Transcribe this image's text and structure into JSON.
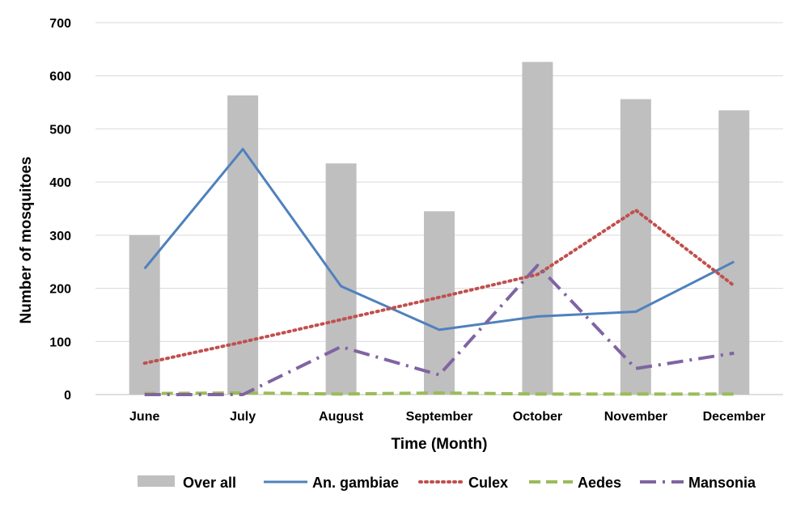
{
  "chart_data": {
    "type": "bar",
    "categories": [
      "June",
      "July",
      "August",
      "September",
      "October",
      "November",
      "December"
    ],
    "ylim": [
      0,
      700
    ],
    "yticks": [
      0,
      100,
      200,
      300,
      400,
      500,
      600,
      700
    ],
    "xlabel": "Time (Month)",
    "ylabel": "Number of mosquitoes",
    "grid": true,
    "legend_position": "bottom",
    "series": [
      {
        "name": "Over all",
        "kind": "bar",
        "style": "solid",
        "color": "#bfbfbf",
        "values": [
          300,
          563,
          435,
          345,
          626,
          556,
          535
        ]
      },
      {
        "name": "An. gambiae",
        "kind": "line",
        "style": "solid",
        "color": "#4f81bd",
        "values": [
          237,
          462,
          204,
          122,
          147,
          156,
          250
        ]
      },
      {
        "name": "Culex",
        "kind": "line",
        "style": "dotted",
        "color": "#c0504d",
        "values": [
          59,
          99,
          141,
          183,
          226,
          347,
          205
        ]
      },
      {
        "name": "Aedes",
        "kind": "line",
        "style": "dashed",
        "color": "#9bbb59",
        "values": [
          2,
          3,
          1,
          3,
          1,
          1,
          1
        ]
      },
      {
        "name": "Mansonia",
        "kind": "line",
        "style": "dashdot",
        "color": "#8064a2",
        "values": [
          0,
          0,
          90,
          37,
          243,
          49,
          78
        ]
      }
    ]
  }
}
